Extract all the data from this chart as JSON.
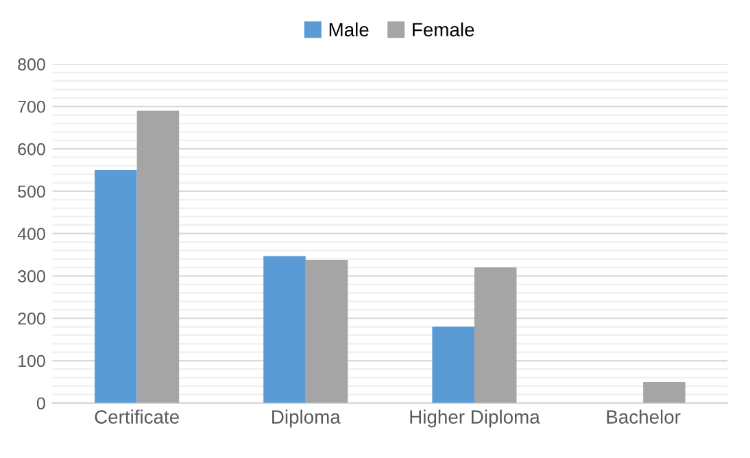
{
  "chart_data": {
    "type": "bar",
    "categories": [
      "Certificate",
      "Diploma",
      "Higher Diploma",
      "Bachelor"
    ],
    "series": [
      {
        "name": "Male",
        "color": "#5b9bd5",
        "values": [
          550,
          347,
          180,
          0
        ]
      },
      {
        "name": "Female",
        "color": "#a5a5a5",
        "values": [
          690,
          338,
          320,
          50
        ]
      }
    ],
    "ylim": [
      0,
      800
    ],
    "yticks": [
      0,
      {
        "value": 20,
        "label": null
      },
      {
        "value": 40,
        "label": null
      },
      {
        "value": 60,
        "label": null
      },
      {
        "value": 80,
        "label": null
      },
      100,
      {
        "value": 120,
        "label": null
      },
      {
        "value": 140,
        "label": null
      },
      {
        "value": 160,
        "label": null
      },
      {
        "value": 180,
        "label": null
      },
      200,
      {
        "value": 220,
        "label": null
      },
      {
        "value": 240,
        "label": null
      },
      {
        "value": 260,
        "label": null
      },
      {
        "value": 280,
        "label": null
      },
      300,
      {
        "value": 320,
        "label": null
      },
      {
        "value": 340,
        "label": null
      },
      {
        "value": 360,
        "label": null
      },
      {
        "value": 380,
        "label": null
      },
      400,
      {
        "value": 420,
        "label": null
      },
      {
        "value": 440,
        "label": null
      },
      {
        "value": 460,
        "label": null
      },
      {
        "value": 480,
        "label": null
      },
      500,
      {
        "value": 520,
        "label": null
      },
      {
        "value": 540,
        "label": null
      },
      {
        "value": 560,
        "label": null
      },
      {
        "value": 580,
        "label": null
      },
      600,
      {
        "value": 620,
        "label": null
      },
      {
        "value": 640,
        "label": null
      },
      {
        "value": 660,
        "label": null
      },
      {
        "value": 680,
        "label": null
      },
      700,
      {
        "value": 720,
        "label": null
      },
      {
        "value": 740,
        "label": null
      },
      {
        "value": 760,
        "label": null
      },
      {
        "value": 780,
        "label": null
      },
      800
    ],
    "grid": "y",
    "legend": "top"
  }
}
